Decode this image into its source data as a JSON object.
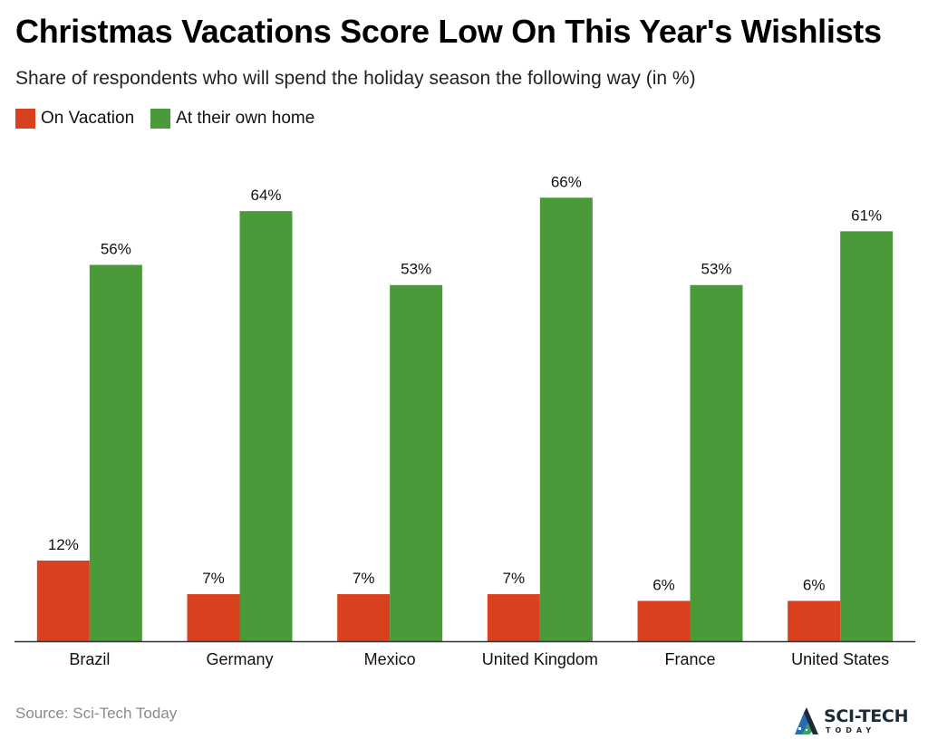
{
  "header": {
    "title": "Christmas Vacations Score Low On This Year's Wishlists",
    "subtitle": "Share of respondents who will spend the holiday season the following way (in %)"
  },
  "footer": {
    "source": "Source: Sci-Tech Today",
    "logo_main": "SCI-TECH",
    "logo_sub": "TODAY"
  },
  "colors": {
    "on_vacation": "#d9411e",
    "at_home": "#4a9a3a",
    "axis": "#333333"
  },
  "chart_data": {
    "type": "bar",
    "title": "Christmas Vacations Score Low On This Year's Wishlists",
    "subtitle": "Share of respondents who will spend the holiday season the following way (in %)",
    "categories": [
      "Brazil",
      "Germany",
      "Mexico",
      "United Kingdom",
      "France",
      "United States"
    ],
    "series": [
      {
        "name": "On Vacation",
        "values": [
          12,
          7,
          7,
          7,
          6,
          6
        ],
        "labels": [
          "12%",
          "7%",
          "7%",
          "7%",
          "6%",
          "6%"
        ],
        "color": "#d9411e"
      },
      {
        "name": "At their own home",
        "values": [
          56,
          64,
          53,
          66,
          53,
          61
        ],
        "labels": [
          "56%",
          "64%",
          "53%",
          "66%",
          "53%",
          "61%"
        ],
        "color": "#4a9a3a"
      }
    ],
    "ylim": [
      0,
      70
    ],
    "grid": false,
    "legend_position": "top-left",
    "xlabel": "",
    "ylabel": ""
  }
}
